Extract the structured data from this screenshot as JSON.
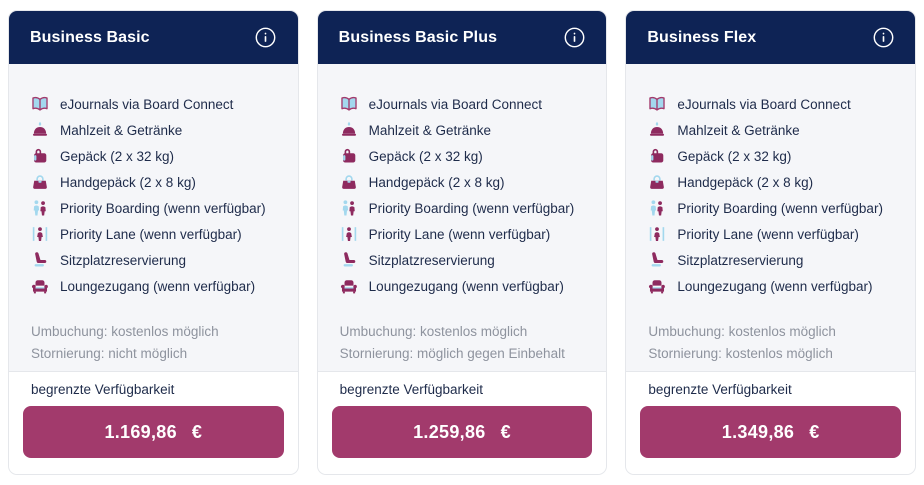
{
  "colors": {
    "header_navy": "#0e2355",
    "price_magenta": "#a23a6c",
    "icon_berry": "#8e2a5f",
    "icon_blue": "#a3d8ee",
    "body_gray": "#f5f6f9",
    "muted_text": "#8e939e"
  },
  "cards": [
    {
      "title": "Business Basic",
      "features": [
        {
          "icon": "book-icon",
          "label": "eJournals via Board Connect"
        },
        {
          "icon": "meal-icon",
          "label": "Mahlzeit & Getränke"
        },
        {
          "icon": "suitcase-icon",
          "label": "Gepäck (2 x 32 kg)"
        },
        {
          "icon": "handbag-icon",
          "label": "Handgepäck (2 x 8 kg)"
        },
        {
          "icon": "priority-boarding-icon",
          "label": "Priority Boarding (wenn verfügbar)"
        },
        {
          "icon": "priority-lane-icon",
          "label": "Priority Lane (wenn verfügbar)"
        },
        {
          "icon": "seat-icon",
          "label": "Sitzplatzreservierung"
        },
        {
          "icon": "lounge-icon",
          "label": "Loungezugang (wenn verfügbar)"
        }
      ],
      "conditions": [
        "Umbuchung: kostenlos möglich",
        "Stornierung: nicht möglich"
      ],
      "availability": "begrenzte Verfügbarkeit",
      "price": "1.169,86",
      "currency": "€"
    },
    {
      "title": "Business Basic Plus",
      "features": [
        {
          "icon": "book-icon",
          "label": "eJournals via Board Connect"
        },
        {
          "icon": "meal-icon",
          "label": "Mahlzeit & Getränke"
        },
        {
          "icon": "suitcase-icon",
          "label": "Gepäck (2 x 32 kg)"
        },
        {
          "icon": "handbag-icon",
          "label": "Handgepäck (2 x 8 kg)"
        },
        {
          "icon": "priority-boarding-icon",
          "label": "Priority Boarding (wenn verfügbar)"
        },
        {
          "icon": "priority-lane-icon",
          "label": "Priority Lane (wenn verfügbar)"
        },
        {
          "icon": "seat-icon",
          "label": "Sitzplatzreservierung"
        },
        {
          "icon": "lounge-icon",
          "label": "Loungezugang (wenn verfügbar)"
        }
      ],
      "conditions": [
        "Umbuchung: kostenlos möglich",
        "Stornierung: möglich gegen Einbehalt"
      ],
      "availability": "begrenzte Verfügbarkeit",
      "price": "1.259,86",
      "currency": "€"
    },
    {
      "title": "Business Flex",
      "features": [
        {
          "icon": "book-icon",
          "label": "eJournals via Board Connect"
        },
        {
          "icon": "meal-icon",
          "label": "Mahlzeit & Getränke"
        },
        {
          "icon": "suitcase-icon",
          "label": "Gepäck (2 x 32 kg)"
        },
        {
          "icon": "handbag-icon",
          "label": "Handgepäck (2 x 8 kg)"
        },
        {
          "icon": "priority-boarding-icon",
          "label": "Priority Boarding (wenn verfügbar)"
        },
        {
          "icon": "priority-lane-icon",
          "label": "Priority Lane (wenn verfügbar)"
        },
        {
          "icon": "seat-icon",
          "label": "Sitzplatzreservierung"
        },
        {
          "icon": "lounge-icon",
          "label": "Loungezugang (wenn verfügbar)"
        }
      ],
      "conditions": [
        "Umbuchung: kostenlos möglich",
        "Stornierung: kostenlos möglich"
      ],
      "availability": "begrenzte Verfügbarkeit",
      "price": "1.349,86",
      "currency": "€"
    }
  ]
}
